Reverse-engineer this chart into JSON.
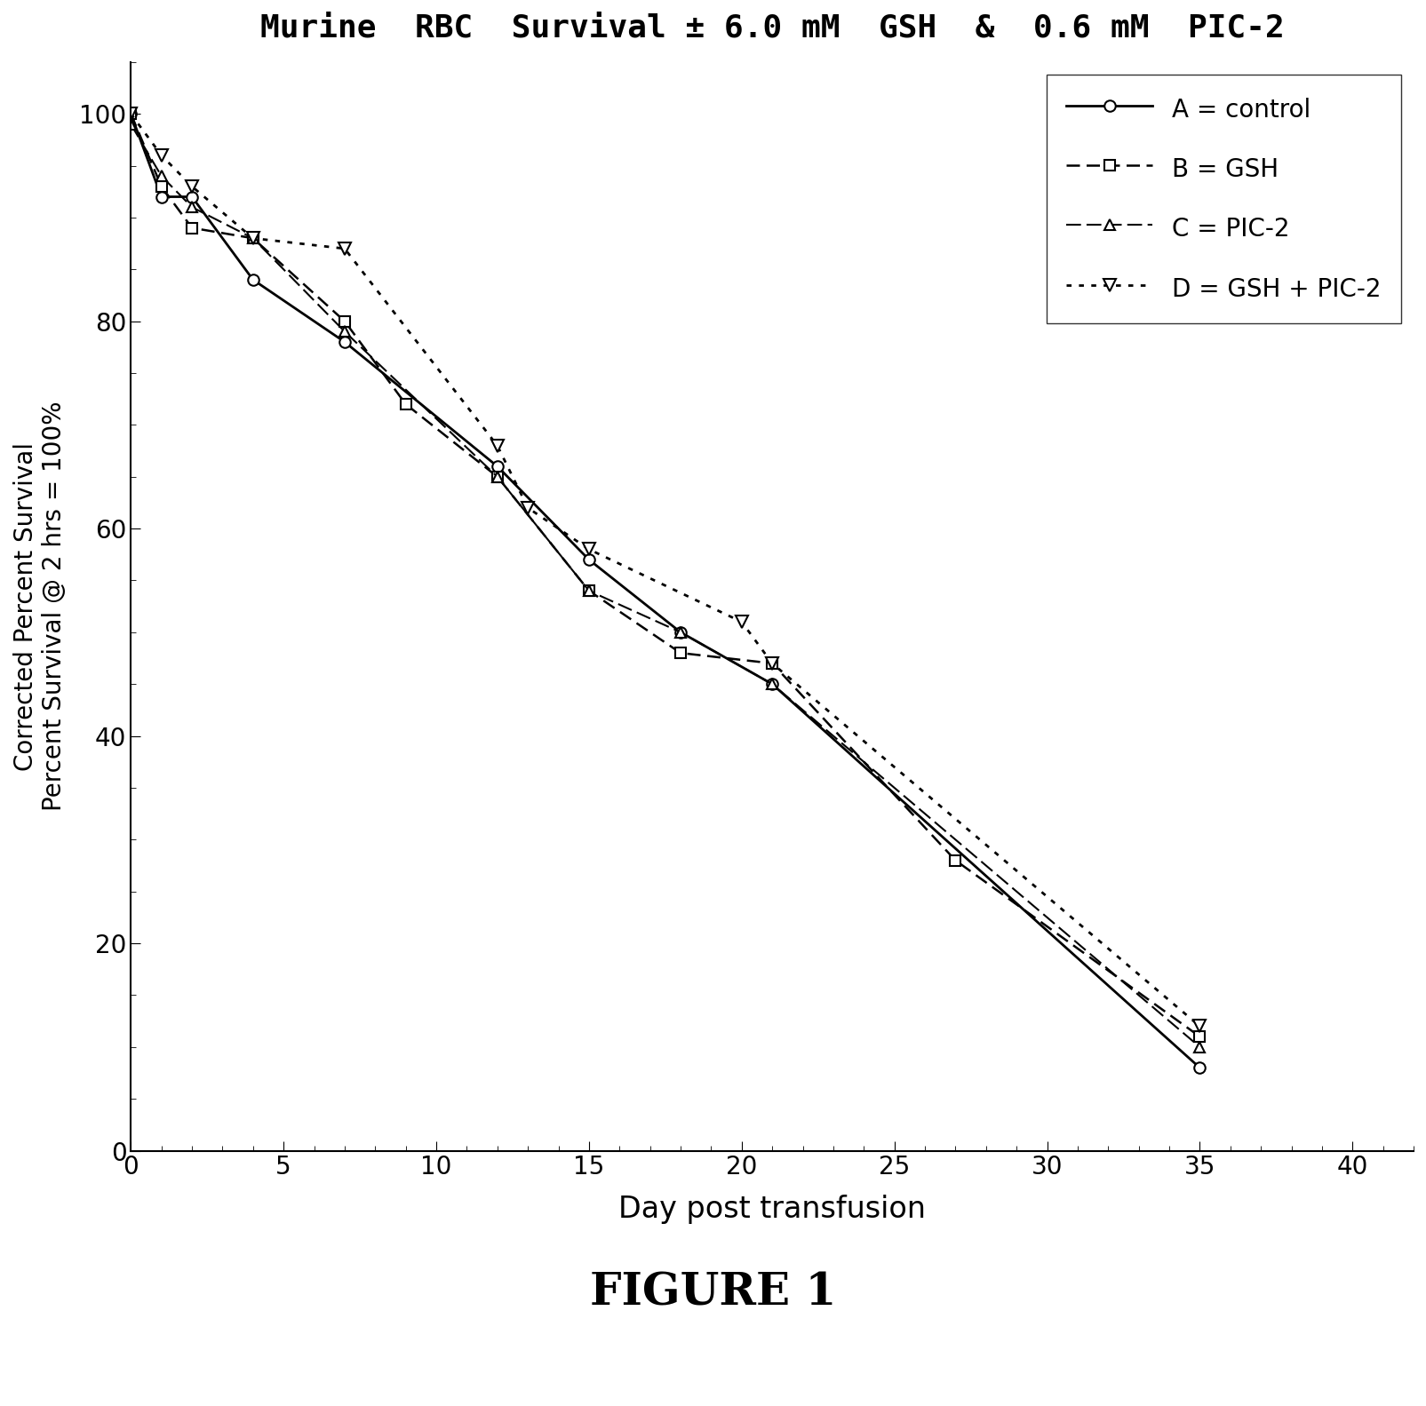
{
  "title": "Murine  RBC  Survival ± 6.0 mM  GSH  &  0.6 mM  PIC-2",
  "xlabel": "Day post transfusion",
  "ylabel": "Corrected Percent Survival\nPercent Survival @ 2 hrs = 100%",
  "figure_caption": "FIGURE 1",
  "xlim": [
    0,
    42
  ],
  "ylim": [
    0,
    105
  ],
  "xticks": [
    0,
    5,
    10,
    15,
    20,
    25,
    30,
    35,
    40
  ],
  "yticks": [
    0,
    20,
    40,
    60,
    80,
    100
  ],
  "series_A": {
    "label": "A = control",
    "x": [
      0,
      1,
      2,
      4,
      7,
      12,
      15,
      18,
      21,
      35
    ],
    "y": [
      100,
      92,
      92,
      84,
      78,
      66,
      57,
      50,
      45,
      8
    ],
    "linestyle": "solid",
    "linewidth": 2.0,
    "marker": "o",
    "markersize": 9,
    "color": "black"
  },
  "series_B": {
    "label": "B = GSH",
    "x": [
      0,
      1,
      2,
      4,
      7,
      9,
      12,
      15,
      18,
      21,
      27,
      35
    ],
    "y": [
      100,
      93,
      89,
      88,
      80,
      72,
      65,
      54,
      48,
      47,
      28,
      11
    ],
    "linestyle": "dashed",
    "linewidth": 1.8,
    "marker": "s",
    "markersize": 9,
    "color": "black"
  },
  "series_C": {
    "label": "C = PIC-2",
    "x": [
      0,
      1,
      2,
      4,
      7,
      12,
      15,
      18,
      21,
      35
    ],
    "y": [
      99,
      94,
      91,
      88,
      79,
      65,
      54,
      50,
      45,
      10
    ],
    "linestyle": "dashed",
    "linewidth": 1.5,
    "marker": "^",
    "markersize": 9,
    "color": "black"
  },
  "series_D": {
    "label": "D = GSH + PIC-2",
    "x": [
      0,
      1,
      2,
      4,
      7,
      12,
      13,
      15,
      20,
      21,
      35
    ],
    "y": [
      100,
      96,
      93,
      88,
      87,
      68,
      62,
      58,
      51,
      47,
      12
    ],
    "linestyle": "dotted",
    "linewidth": 2.0,
    "marker": "v",
    "markersize": 10,
    "color": "black"
  }
}
